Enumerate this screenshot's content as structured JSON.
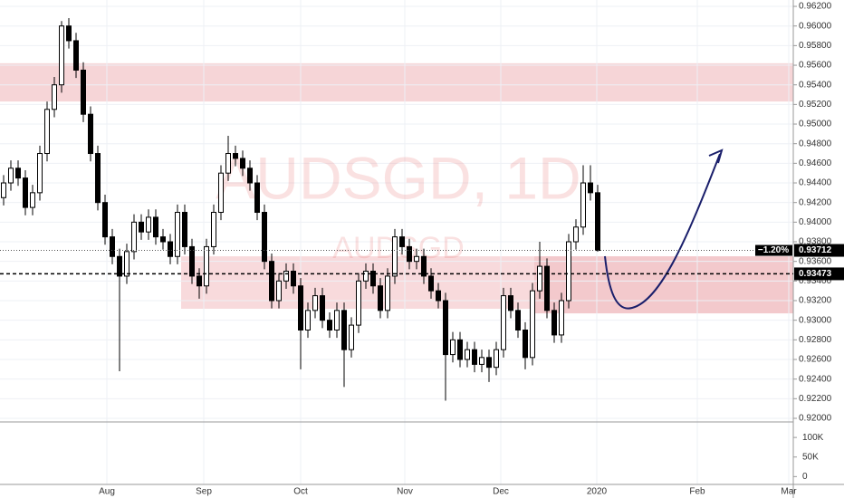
{
  "chart_data": {
    "type": "candlestick",
    "title": "AUDSGD, 1D",
    "subtitle": "AUDSGD",
    "open": [
      0.9425,
      0.944,
      0.9455,
      0.9445,
      0.9415,
      0.943,
      0.947,
      0.9515,
      0.954,
      0.96,
      0.9585,
      0.9555,
      0.951,
      0.947,
      0.942,
      0.9385,
      0.9365,
      0.9345,
      0.937,
      0.94,
      0.939,
      0.9405,
      0.9385,
      0.938,
      0.9365,
      0.941,
      0.9375,
      0.9345,
      0.9335,
      0.9375,
      0.941,
      0.945,
      0.947,
      0.9465,
      0.9455,
      0.944,
      0.941,
      0.936,
      0.932,
      0.934,
      0.935,
      0.9335,
      0.929,
      0.931,
      0.9325,
      0.93,
      0.929,
      0.931,
      0.927,
      0.9295,
      0.934,
      0.935,
      0.9335,
      0.931,
      0.9345,
      0.9385,
      0.9375,
      0.936,
      0.9365,
      0.9345,
      0.933,
      0.932,
      0.9265,
      0.928,
      0.926,
      0.927,
      0.9255,
      0.9262,
      0.9252,
      0.927,
      0.9325,
      0.931,
      0.929,
      0.9262,
      0.933,
      0.9355,
      0.931,
      0.9285,
      0.932,
      0.938,
      0.9395,
      0.944,
      0.943
    ],
    "high": [
      0.9448,
      0.9463,
      0.9463,
      0.9453,
      0.9438,
      0.9478,
      0.9523,
      0.9548,
      0.9605,
      0.9608,
      0.9593,
      0.9563,
      0.9518,
      0.9478,
      0.9428,
      0.9393,
      0.9373,
      0.9378,
      0.9408,
      0.9408,
      0.9413,
      0.9413,
      0.9393,
      0.9388,
      0.9418,
      0.9418,
      0.9383,
      0.9353,
      0.9383,
      0.9418,
      0.9458,
      0.9488,
      0.9478,
      0.9473,
      0.9463,
      0.9448,
      0.9418,
      0.9368,
      0.9348,
      0.9358,
      0.9358,
      0.9343,
      0.9318,
      0.9333,
      0.9333,
      0.9308,
      0.9318,
      0.9318,
      0.9303,
      0.9348,
      0.9358,
      0.9358,
      0.9343,
      0.9353,
      0.9393,
      0.9393,
      0.9383,
      0.9373,
      0.9373,
      0.9353,
      0.9338,
      0.9328,
      0.9288,
      0.9288,
      0.9278,
      0.9278,
      0.927,
      0.927,
      0.9278,
      0.9333,
      0.9333,
      0.9318,
      0.9298,
      0.9338,
      0.938,
      0.9363,
      0.9318,
      0.9328,
      0.9388,
      0.9403,
      0.9458,
      0.9458,
      0.9438
    ],
    "low": [
      0.9417,
      0.9432,
      0.9437,
      0.9407,
      0.9407,
      0.9422,
      0.9462,
      0.9507,
      0.9532,
      0.9577,
      0.9547,
      0.9502,
      0.9462,
      0.9412,
      0.9377,
      0.9357,
      0.9248,
      0.9337,
      0.9362,
      0.9382,
      0.9382,
      0.9377,
      0.9372,
      0.9357,
      0.9357,
      0.9367,
      0.9337,
      0.9322,
      0.9327,
      0.9367,
      0.9402,
      0.9442,
      0.9457,
      0.9447,
      0.9432,
      0.9402,
      0.9352,
      0.9312,
      0.9312,
      0.9332,
      0.9327,
      0.925,
      0.9282,
      0.9302,
      0.9292,
      0.9282,
      0.9282,
      0.9232,
      0.9262,
      0.9287,
      0.9332,
      0.9327,
      0.9302,
      0.9302,
      0.9337,
      0.9367,
      0.9352,
      0.9352,
      0.9337,
      0.9322,
      0.9312,
      0.9218,
      0.9257,
      0.9252,
      0.9252,
      0.9247,
      0.9247,
      0.9237,
      0.9244,
      0.9262,
      0.9302,
      0.9282,
      0.925,
      0.9254,
      0.9322,
      0.9302,
      0.9277,
      0.9277,
      0.9312,
      0.9372,
      0.9387,
      0.9422,
      0.937
    ],
    "close": [
      0.944,
      0.9455,
      0.9445,
      0.9415,
      0.943,
      0.947,
      0.9515,
      0.954,
      0.96,
      0.9585,
      0.9555,
      0.951,
      0.947,
      0.942,
      0.9385,
      0.9365,
      0.9345,
      0.937,
      0.94,
      0.939,
      0.9405,
      0.9385,
      0.938,
      0.9365,
      0.941,
      0.9375,
      0.9345,
      0.9335,
      0.9375,
      0.941,
      0.945,
      0.947,
      0.9465,
      0.9455,
      0.944,
      0.941,
      0.936,
      0.932,
      0.934,
      0.935,
      0.9335,
      0.929,
      0.931,
      0.9325,
      0.93,
      0.929,
      0.931,
      0.927,
      0.9295,
      0.934,
      0.935,
      0.9335,
      0.931,
      0.9345,
      0.9385,
      0.9375,
      0.936,
      0.9365,
      0.9345,
      0.933,
      0.932,
      0.9265,
      0.928,
      0.926,
      0.927,
      0.9255,
      0.9262,
      0.9252,
      0.927,
      0.9325,
      0.931,
      0.929,
      0.9262,
      0.933,
      0.9355,
      0.931,
      0.9285,
      0.932,
      0.938,
      0.9395,
      0.944,
      0.943,
      0.93712
    ],
    "x_labels": [
      "Aug",
      "Sep",
      "Oct",
      "Nov",
      "Dec",
      "2020",
      "Feb",
      "Mar"
    ],
    "ylim": [
      0.91963,
      0.96265
    ],
    "yticks": [
      {
        "value": 0.92,
        "label": "0.92000"
      },
      {
        "value": 0.922,
        "label": "0.92200"
      },
      {
        "value": 0.924,
        "label": "0.92400"
      },
      {
        "value": 0.926,
        "label": "0.92600"
      },
      {
        "value": 0.928,
        "label": "0.92800"
      },
      {
        "value": 0.93,
        "label": "0.93000"
      },
      {
        "value": 0.932,
        "label": "0.93200"
      },
      {
        "value": 0.934,
        "label": "0.93400"
      },
      {
        "value": 0.936,
        "label": "0.93600"
      },
      {
        "value": 0.938,
        "label": "0.93800"
      },
      {
        "value": 0.94,
        "label": "0.94000"
      },
      {
        "value": 0.942,
        "label": "0.94200"
      },
      {
        "value": 0.944,
        "label": "0.94400"
      },
      {
        "value": 0.946,
        "label": "0.94600"
      },
      {
        "value": 0.948,
        "label": "0.94800"
      },
      {
        "value": 0.95,
        "label": "0.95000"
      },
      {
        "value": 0.952,
        "label": "0.95200"
      },
      {
        "value": 0.954,
        "label": "0.95400"
      },
      {
        "value": 0.956,
        "label": "0.95600"
      },
      {
        "value": 0.958,
        "label": "0.95800"
      },
      {
        "value": 0.96,
        "label": "0.96000"
      },
      {
        "value": 0.962,
        "label": "0.96200"
      }
    ],
    "volume_lim": [
      -20000,
      135000
    ],
    "volume_ticks": [
      {
        "value": 0,
        "label": "0"
      },
      {
        "value": 50000,
        "label": "50K"
      },
      {
        "value": 100000,
        "label": "100K"
      }
    ],
    "change_label": "−1.20%",
    "level": 0.93473,
    "zones": [
      {
        "from": 0.9523,
        "to": 0.9562,
        "color": "#f6d5d7"
      },
      {
        "from": 0.93117,
        "to": 0.93652,
        "color": "#f8dadc"
      },
      {
        "from": 0.9307,
        "to": 0.93652,
        "color": "#f3c9cc"
      }
    ],
    "up_color": "#ffffff",
    "down_color": "#000000",
    "grid": true
  }
}
